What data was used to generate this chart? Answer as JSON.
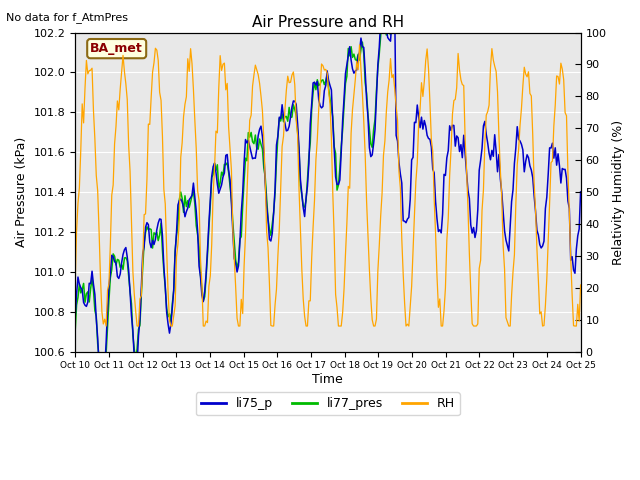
{
  "title": "Air Pressure and RH",
  "xlabel": "Time",
  "ylabel_left": "Air Pressure (kPa)",
  "ylabel_right": "Relativity Humidity (%)",
  "no_data_text": "No data for f_AtmPres",
  "station_label": "BA_met",
  "ylim_left": [
    100.6,
    102.2
  ],
  "ylim_right": [
    0,
    100
  ],
  "color_li75": "#0000cc",
  "color_li77": "#00bb00",
  "color_rh": "#ffa500",
  "bg_color": "#e8e8e8",
  "yticks_left": [
    100.6,
    100.8,
    101.0,
    101.2,
    101.4,
    101.6,
    101.8,
    102.0,
    102.2
  ],
  "yticks_right": [
    0,
    10,
    20,
    30,
    40,
    50,
    60,
    70,
    80,
    90,
    100
  ],
  "xtick_labels": [
    "Oct 10",
    "Oct 11",
    "Oct 12",
    "Oct 13",
    "Oct 14",
    "Oct 15",
    "Oct 16",
    "Oct 17",
    "Oct 18",
    "Oct 19",
    "Oct 20",
    "Oct 21",
    "Oct 22",
    "Oct 23",
    "Oct 24",
    "Oct 25"
  ],
  "seed": 123
}
